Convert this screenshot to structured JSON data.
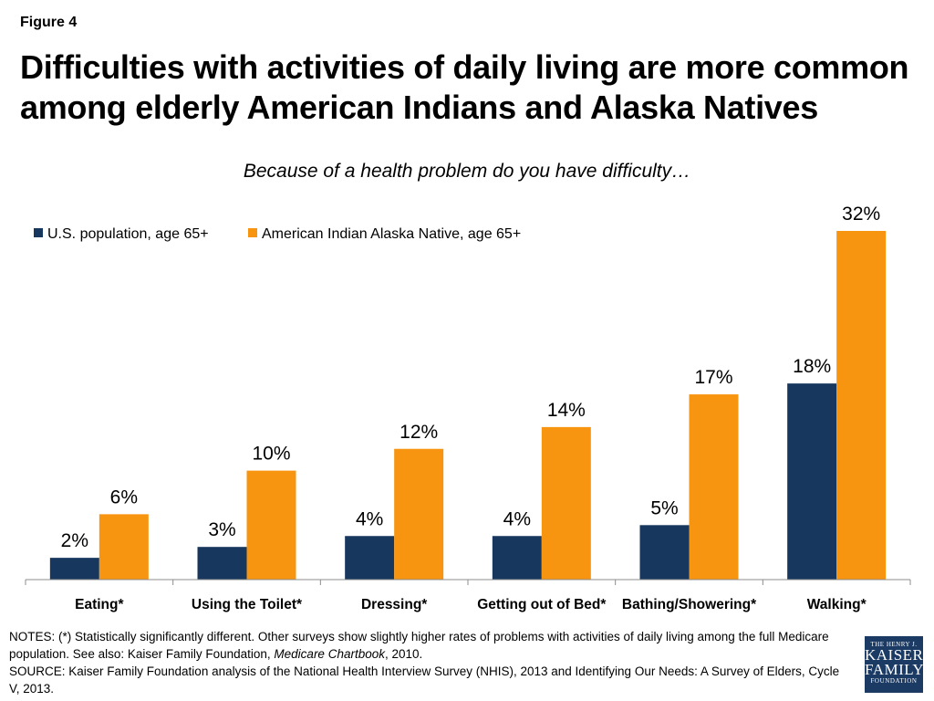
{
  "header": {
    "figure_label": "Figure 4",
    "title": "Difficulties with activities of daily living are more common among elderly American Indians and Alaska Natives"
  },
  "chart_data": {
    "type": "bar",
    "subtitle": "Because of a health problem do you have difficulty…",
    "categories": [
      "Eating*",
      "Using the Toilet*",
      "Dressing*",
      "Getting out of Bed*",
      "Bathing/Showering*",
      "Walking*"
    ],
    "series": [
      {
        "name": "U.S. population, age 65+",
        "values": [
          2,
          3,
          4,
          4,
          5,
          18
        ],
        "labels": [
          "2%",
          "3%",
          "4%",
          "4%",
          "5%",
          "18%"
        ],
        "color": "#17375e"
      },
      {
        "name": "American Indian Alaska Native, age 65+",
        "values": [
          6,
          10,
          12,
          14,
          17,
          32
        ],
        "labels": [
          "6%",
          "10%",
          "12%",
          "14%",
          "17%",
          "32%"
        ],
        "color": "#f79410"
      }
    ],
    "ylim": [
      0,
      32
    ],
    "grid": false,
    "legend_position": "top-left"
  },
  "notes": {
    "line1_a": "NOTES: (*) Statistically significantly different. Other surveys show slightly higher rates of problems with activities of daily living among the full Medicare population.  See also: Kaiser Family Foundation, ",
    "line1_italic": "Medicare Chartbook",
    "line1_b": ", 2010.",
    "source": "SOURCE: Kaiser Family Foundation analysis of the National Health Interview Survey (NHIS), 2013 and Identifying Our Needs: A Survey of Elders, Cycle V, 2013."
  },
  "logo": {
    "line1": "THE HENRY J.",
    "line2": "KAISER",
    "line3": "FAMILY",
    "line4": "FOUNDATION"
  }
}
